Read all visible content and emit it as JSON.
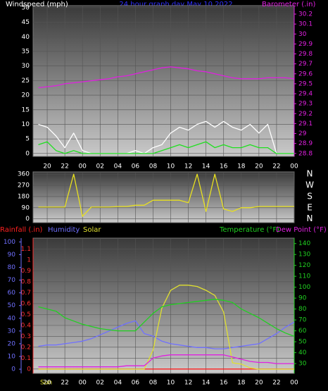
{
  "chart_data": [
    {
      "type": "line",
      "title": "24 hour graph day   May 10 2022",
      "x": [
        19,
        20,
        21,
        22,
        23,
        24,
        25,
        26,
        27,
        28,
        29,
        30,
        31,
        32,
        33,
        34,
        35,
        36,
        37,
        38,
        39,
        40,
        41,
        42,
        43,
        44,
        45,
        46,
        47,
        48
      ],
      "xlim": [
        18.4,
        48
      ],
      "xticks": [
        20,
        22,
        {
          "value": 24,
          "label": "00"
        },
        {
          "value": 26,
          "label": "02"
        },
        {
          "value": 28,
          "label": "04"
        },
        {
          "value": 30,
          "label": "06"
        },
        {
          "value": 32,
          "label": "08"
        },
        {
          "value": 34,
          "label": "10"
        },
        {
          "value": 36,
          "label": "12"
        },
        {
          "value": 38,
          "label": "14"
        },
        {
          "value": 40,
          "label": "16"
        },
        {
          "value": 42,
          "label": "18"
        },
        {
          "value": 44,
          "label": "20"
        },
        {
          "value": 46,
          "label": "22"
        },
        {
          "value": 48,
          "label": "00"
        }
      ],
      "ylim": [
        -1,
        50.7
      ],
      "yticks": [
        0,
        5,
        10,
        15,
        20,
        25,
        30,
        35,
        40,
        45,
        50
      ],
      "y2lim": [
        28.77,
        30.285
      ],
      "y2ticks": [
        28.8,
        28.9,
        29,
        29.1,
        29.2,
        29.3,
        29.4,
        29.5,
        29.6,
        29.7,
        29.8,
        29.9,
        30,
        30.1,
        30.2
      ],
      "grid": true,
      "series": [
        {
          "name": "Windspeed (mph)",
          "color": "#ffffff",
          "values": [
            10,
            9,
            6,
            2,
            7,
            1,
            0,
            0,
            0,
            0,
            0,
            1,
            0,
            2,
            3,
            7,
            9,
            8,
            10,
            11,
            9,
            11,
            9,
            8,
            10,
            7,
            10,
            0,
            0,
            0
          ]
        },
        {
          "color": "#20e020",
          "values": [
            3,
            4,
            1,
            0,
            1,
            0,
            0,
            0,
            0,
            0,
            0,
            0,
            0,
            0,
            1,
            2,
            3,
            2,
            3,
            4,
            2,
            3,
            2,
            2,
            3,
            2,
            2,
            0,
            0,
            0
          ]
        },
        {
          "name": "Barometer (.in)",
          "color": "#e020e0",
          "axis": "y2",
          "values": [
            29.46,
            29.47,
            29.48,
            29.5,
            29.51,
            29.52,
            29.53,
            29.54,
            29.55,
            29.57,
            29.58,
            29.6,
            29.62,
            29.64,
            29.66,
            29.67,
            29.66,
            29.65,
            29.63,
            29.62,
            29.6,
            29.58,
            29.56,
            29.55,
            29.55,
            29.55,
            29.56,
            29.56,
            29.56,
            29.55
          ]
        }
      ]
    },
    {
      "type": "line",
      "x": [
        19,
        20,
        21,
        22,
        23,
        24,
        25,
        26,
        27,
        28,
        29,
        30,
        31,
        32,
        33,
        34,
        35,
        36,
        37,
        38,
        39,
        40,
        41,
        42,
        43,
        44,
        45,
        46,
        47,
        48
      ],
      "xlim": [
        18.4,
        48
      ],
      "xticks": [
        20,
        22,
        24,
        26,
        28,
        30,
        32,
        34,
        36,
        38,
        40,
        42,
        44,
        46,
        48
      ],
      "ylim": [
        -30,
        378
      ],
      "yticks": [
        0,
        90,
        180,
        270,
        360
      ],
      "y2lim": [
        -30,
        378
      ],
      "y2ticks": [
        {
          "value": 360,
          "label": "N"
        },
        {
          "value": 270,
          "label": "W"
        },
        {
          "value": 180,
          "label": "S"
        },
        {
          "value": 90,
          "label": "E"
        },
        {
          "value": 0,
          "label": "N"
        }
      ],
      "grid": true,
      "series": [
        {
          "color": "#e8e020",
          "values": [
            95,
            95,
            95,
            95,
            360,
            20,
            95,
            95,
            95,
            100,
            100,
            110,
            110,
            150,
            150,
            150,
            150,
            130,
            360,
            60,
            360,
            80,
            60,
            90,
            90,
            100,
            100,
            100,
            100,
            100
          ]
        }
      ]
    },
    {
      "type": "line",
      "annotation": "Sun",
      "x": [
        19,
        20,
        21,
        22,
        23,
        24,
        25,
        26,
        27,
        28,
        29,
        30,
        31,
        32,
        33,
        34,
        35,
        36,
        37,
        38,
        39,
        40,
        41,
        42,
        43,
        44,
        45,
        46,
        47,
        48
      ],
      "xlim": [
        18.4,
        48
      ],
      "xticks": [
        20,
        22,
        {
          "value": 24,
          "label": "00"
        },
        {
          "value": 26,
          "label": "02"
        },
        {
          "value": 28,
          "label": "04"
        },
        {
          "value": 30,
          "label": "06"
        },
        {
          "value": 32,
          "label": "08"
        },
        {
          "value": 34,
          "label": "10"
        },
        {
          "value": 36,
          "label": "12"
        },
        {
          "value": 38,
          "label": "14"
        },
        {
          "value": 40,
          "label": "16"
        },
        {
          "value": 42,
          "label": "18"
        },
        {
          "value": 44,
          "label": "20"
        },
        {
          "value": 46,
          "label": "22"
        },
        {
          "value": 48,
          "label": "00"
        }
      ],
      "ylim": [
        -0.04,
        1.2
      ],
      "yticks": [
        0,
        0.1,
        0.2,
        0.3,
        0.4,
        0.5,
        0.6,
        0.7,
        0.8,
        0.9,
        1,
        1.1
      ],
      "y2lim": [
        21,
        145
      ],
      "y2ticks": [
        30,
        40,
        50,
        60,
        70,
        80,
        90,
        100,
        110,
        120,
        130,
        140
      ],
      "y3lim": [
        -3.3,
        103
      ],
      "y3ticks": [
        0,
        10,
        20,
        30,
        40,
        50,
        60,
        70,
        80,
        90,
        100
      ],
      "grid": true,
      "series": [
        {
          "name": "Rainfall (.in)",
          "color": "#ff2020",
          "values": [
            0,
            0,
            0,
            0,
            0,
            0,
            0,
            0,
            0,
            0,
            0,
            0,
            0,
            0,
            0,
            0,
            0,
            0,
            0,
            0,
            0,
            0,
            0,
            0,
            0,
            0,
            0,
            0,
            0,
            0
          ]
        },
        {
          "name": "Humidity",
          "color": "#7070ff",
          "axis": "y3",
          "values": [
            18,
            19,
            19,
            20,
            21,
            22,
            24,
            27,
            30,
            33,
            36,
            38,
            28,
            26,
            22,
            20,
            19,
            18,
            17,
            17,
            16,
            16,
            17,
            18,
            19,
            20,
            24,
            28,
            33,
            37
          ]
        },
        {
          "name": "Solar",
          "color": "#e0e030",
          "axis": "y3",
          "values": [
            0,
            0,
            0,
            0,
            0,
            0,
            0,
            0,
            0,
            0,
            0,
            0,
            0,
            15,
            48,
            62,
            66,
            66,
            65,
            62,
            58,
            45,
            5,
            4,
            1,
            0,
            0,
            0,
            0,
            0
          ]
        },
        {
          "name": "Temperature (°F)",
          "color": "#20d020",
          "axis": "y2",
          "values": [
            82,
            80,
            78,
            72,
            69,
            66,
            64,
            62,
            61,
            60,
            60,
            60,
            68,
            76,
            82,
            84,
            85,
            86,
            87,
            88,
            89,
            88,
            86,
            80,
            76,
            72,
            67,
            62,
            58,
            55
          ]
        },
        {
          "name": "Dew Point (°F)",
          "color": "#e020e0",
          "axis": "y2",
          "values": [
            27,
            27,
            27,
            27,
            27,
            27,
            27,
            27,
            27,
            27,
            28,
            28,
            28,
            35,
            37,
            38,
            38,
            38,
            38,
            38,
            38,
            38,
            36,
            34,
            32,
            31,
            31,
            30,
            30,
            30
          ]
        }
      ]
    }
  ]
}
